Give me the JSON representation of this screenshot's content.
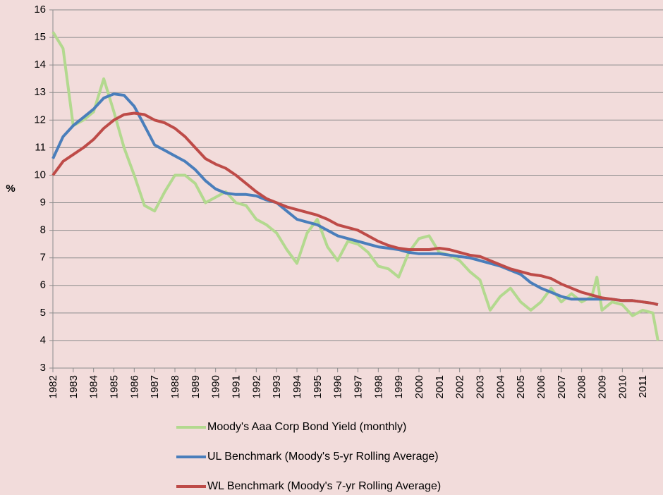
{
  "chart_data": {
    "type": "line",
    "y_label": "%",
    "x": [
      1982,
      1982.5,
      1983,
      1983.5,
      1984,
      1984.5,
      1985,
      1985.5,
      1986,
      1986.5,
      1987,
      1987.5,
      1988,
      1988.5,
      1989,
      1989.5,
      1990,
      1990.5,
      1991,
      1991.5,
      1992,
      1992.5,
      1993,
      1993.5,
      1994,
      1994.5,
      1995,
      1995.5,
      1996,
      1996.5,
      1997,
      1997.5,
      1998,
      1998.5,
      1999,
      1999.5,
      2000,
      2000.5,
      2001,
      2001.5,
      2002,
      2002.5,
      2003,
      2003.5,
      2004,
      2004.5,
      2005,
      2005.5,
      2006,
      2006.5,
      2007,
      2007.5,
      2008,
      2008.5,
      2008.75,
      2009,
      2009.5,
      2010,
      2010.5,
      2011,
      2011.5,
      2011.75
    ],
    "series": [
      {
        "name": "Moody's Aaa Corp Bond Yield (monthly)",
        "color": "#b3d98f",
        "values": [
          15.2,
          14.6,
          11.8,
          12.0,
          12.3,
          13.5,
          12.3,
          11.0,
          10.0,
          8.9,
          8.7,
          9.4,
          10.0,
          10.0,
          9.7,
          9.0,
          9.2,
          9.4,
          9.0,
          8.9,
          8.4,
          8.2,
          7.9,
          7.3,
          6.8,
          7.9,
          8.4,
          7.4,
          6.9,
          7.6,
          7.5,
          7.2,
          6.7,
          6.6,
          6.3,
          7.2,
          7.7,
          7.8,
          7.2,
          7.1,
          6.9,
          6.5,
          6.2,
          5.1,
          5.6,
          5.9,
          5.4,
          5.1,
          5.4,
          5.9,
          5.4,
          5.7,
          5.4,
          5.6,
          6.3,
          5.1,
          5.4,
          5.3,
          4.9,
          5.1,
          5.0,
          4.0
        ]
      },
      {
        "name": "UL Benchmark (Moody's 5-yr Rolling Average)",
        "color": "#4a7ebb",
        "values": [
          10.6,
          11.4,
          11.8,
          12.1,
          12.4,
          12.8,
          12.95,
          12.9,
          12.5,
          11.8,
          11.1,
          10.9,
          10.7,
          10.5,
          10.2,
          9.8,
          9.5,
          9.35,
          9.3,
          9.3,
          9.25,
          9.1,
          9.0,
          8.7,
          8.4,
          8.3,
          8.2,
          8.0,
          7.8,
          7.7,
          7.6,
          7.5,
          7.4,
          7.35,
          7.3,
          7.2,
          7.15,
          7.15,
          7.15,
          7.1,
          7.05,
          7.0,
          6.9,
          6.8,
          6.7,
          6.55,
          6.4,
          6.1,
          5.9,
          5.75,
          5.6,
          5.5,
          5.5,
          5.5,
          5.5,
          5.5,
          5.5,
          5.45,
          5.45,
          5.4,
          5.35,
          5.3
        ]
      },
      {
        "name": "WL Benchmark (Moody's 7-yr Rolling Average)",
        "color": "#be4b48",
        "values": [
          10.0,
          10.5,
          10.75,
          11.0,
          11.3,
          11.7,
          12.0,
          12.2,
          12.25,
          12.2,
          12.0,
          11.9,
          11.7,
          11.4,
          11.0,
          10.6,
          10.4,
          10.25,
          10.0,
          9.7,
          9.4,
          9.15,
          9.0,
          8.85,
          8.75,
          8.65,
          8.55,
          8.4,
          8.2,
          8.1,
          8.0,
          7.8,
          7.6,
          7.45,
          7.35,
          7.3,
          7.3,
          7.3,
          7.35,
          7.3,
          7.2,
          7.1,
          7.05,
          6.9,
          6.75,
          6.6,
          6.5,
          6.4,
          6.35,
          6.25,
          6.05,
          5.9,
          5.75,
          5.65,
          5.6,
          5.55,
          5.5,
          5.45,
          5.45,
          5.4,
          5.35,
          5.3
        ]
      }
    ],
    "xlim": [
      1982,
      2012
    ],
    "xticks": [
      1982,
      1983,
      1984,
      1985,
      1986,
      1987,
      1988,
      1989,
      1990,
      1991,
      1992,
      1993,
      1994,
      1995,
      1996,
      1997,
      1998,
      1999,
      2000,
      2001,
      2002,
      2003,
      2004,
      2005,
      2006,
      2007,
      2008,
      2009,
      2010,
      2011
    ],
    "ylim": [
      3,
      16
    ],
    "yticks": [
      3,
      4,
      5,
      6,
      7,
      8,
      9,
      10,
      11,
      12,
      13,
      14,
      15,
      16
    ],
    "grid": true,
    "legend": "bottom"
  }
}
